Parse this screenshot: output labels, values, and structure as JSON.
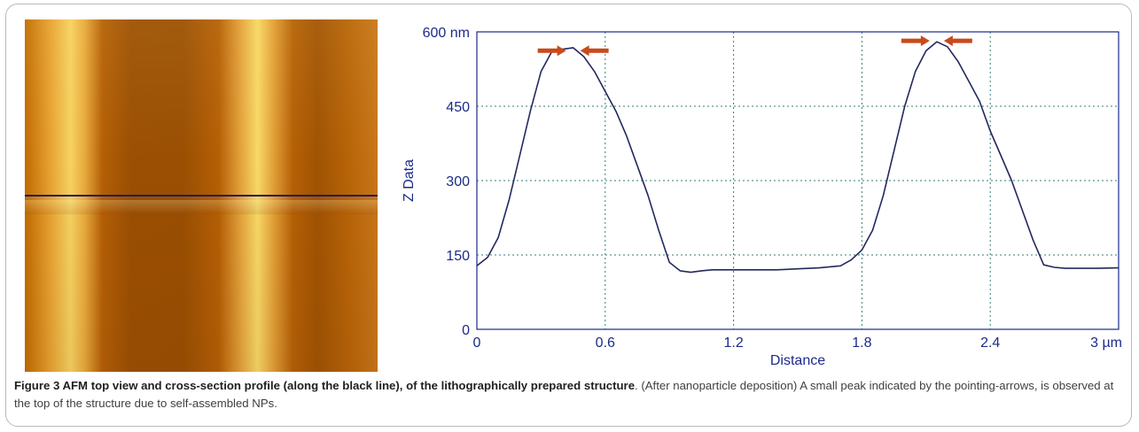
{
  "figure": {
    "caption_bold": "Figure 3 AFM top view and cross-section profile (along the black line), of the lithographically prepared structure",
    "caption_rest": ". (After nanoparticle deposition) A small peak indicated by the pointing-arrows, is observed at the top of the structure due to self-assembled NPs."
  },
  "chart_data": {
    "type": "line",
    "xlabel": "Distance",
    "ylabel": "Z Data",
    "xlim": [
      0,
      3
    ],
    "ylim": [
      0,
      600
    ],
    "x_tick_labels": [
      "0",
      "0.6",
      "1.2",
      "1.8",
      "2.4",
      "3 µm"
    ],
    "y_tick_labels": [
      "0",
      "150",
      "300",
      "450",
      "600 nm"
    ],
    "x_ticks": [
      0,
      0.6,
      1.2,
      1.8,
      2.4,
      3.0
    ],
    "y_ticks": [
      0,
      150,
      300,
      450,
      600
    ],
    "grid": true,
    "series": [
      {
        "x": [
          0,
          0.05,
          0.1,
          0.15,
          0.2,
          0.25,
          0.3,
          0.35,
          0.4,
          0.45,
          0.5,
          0.55,
          0.6,
          0.65,
          0.7,
          0.75,
          0.8,
          0.85,
          0.9,
          0.95,
          1.0,
          1.05,
          1.1,
          1.2,
          1.4,
          1.6,
          1.7,
          1.75,
          1.8,
          1.85,
          1.9,
          1.95,
          2.0,
          2.05,
          2.1,
          2.15,
          2.2,
          2.25,
          2.3,
          2.35,
          2.4,
          2.45,
          2.5,
          2.55,
          2.6,
          2.65,
          2.7,
          2.75,
          2.8,
          2.9,
          3.0
        ],
        "values": [
          128,
          145,
          185,
          260,
          350,
          440,
          520,
          560,
          565,
          568,
          550,
          520,
          480,
          440,
          390,
          330,
          270,
          200,
          135,
          118,
          115,
          118,
          120,
          120,
          120,
          124,
          128,
          140,
          160,
          200,
          270,
          360,
          450,
          520,
          562,
          580,
          570,
          540,
          500,
          460,
          400,
          350,
          300,
          240,
          180,
          130,
          125,
          123,
          123,
          123,
          124
        ]
      }
    ],
    "annotations": [
      {
        "type": "arrow-pair",
        "x": 0.45,
        "y": 562,
        "text": ""
      },
      {
        "type": "arrow-pair",
        "x": 2.15,
        "y": 582,
        "text": ""
      }
    ]
  }
}
